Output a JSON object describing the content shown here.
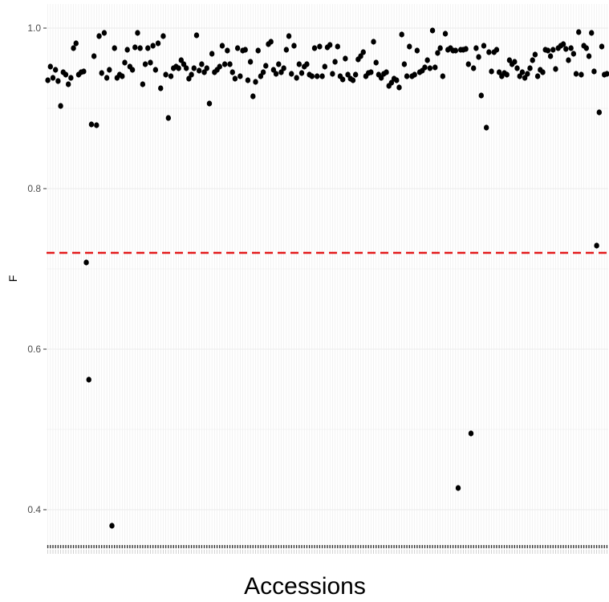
{
  "chart_data": {
    "type": "scatter",
    "title": "",
    "xlabel": "Accessions",
    "ylabel": "F",
    "ylim": [
      0.345,
      1.03
    ],
    "yticks": [
      0.4,
      0.6,
      0.8,
      1.0
    ],
    "ytick_labels": [
      "0.4",
      "0.6",
      "0.8",
      "1.0"
    ],
    "grid": true,
    "legend": "none",
    "threshold": {
      "y": 0.72,
      "style": "dashed",
      "color": "#e31a1c"
    },
    "colors": {
      "point": "#000000",
      "panel": "#ffffff",
      "grid": "#ebebeb"
    },
    "series": [
      {
        "values": [
          0.935,
          0.952,
          0.938,
          0.948,
          0.934,
          0.903,
          0.945,
          0.942,
          0.93,
          0.938,
          0.975,
          0.981,
          0.942,
          0.945,
          0.946,
          0.708,
          0.562,
          0.88,
          0.965,
          0.879,
          0.99,
          0.944,
          0.994,
          0.938,
          0.948,
          0.38,
          0.975,
          0.938,
          0.942,
          0.94,
          0.957,
          0.973,
          0.952,
          0.948,
          0.976,
          0.994,
          0.975,
          0.93,
          0.955,
          0.975,
          0.957,
          0.978,
          0.948,
          0.981,
          0.925,
          0.99,
          0.942,
          0.888,
          0.94,
          0.95,
          0.952,
          0.95,
          0.96,
          0.955,
          0.95,
          0.937,
          0.942,
          0.95,
          0.991,
          0.947,
          0.955,
          0.945,
          0.95,
          0.906,
          0.968,
          0.945,
          0.948,
          0.952,
          0.978,
          0.955,
          0.972,
          0.955,
          0.945,
          0.937,
          0.975,
          0.94,
          0.972,
          0.973,
          0.935,
          0.958,
          0.915,
          0.933,
          0.972,
          0.94,
          0.945,
          0.953,
          0.98,
          0.983,
          0.948,
          0.943,
          0.955,
          0.945,
          0.95,
          0.973,
          0.99,
          0.943,
          0.978,
          0.938,
          0.955,
          0.944,
          0.952,
          0.955,
          0.942,
          0.94,
          0.975,
          0.94,
          0.977,
          0.94,
          0.952,
          0.976,
          0.979,
          0.943,
          0.958,
          0.977,
          0.94,
          0.936,
          0.962,
          0.942,
          0.937,
          0.935,
          0.942,
          0.961,
          0.965,
          0.97,
          0.94,
          0.944,
          0.945,
          0.983,
          0.957,
          0.942,
          0.938,
          0.943,
          0.945,
          0.928,
          0.932,
          0.937,
          0.935,
          0.926,
          0.992,
          0.955,
          0.94,
          0.977,
          0.94,
          0.942,
          0.972,
          0.945,
          0.947,
          0.951,
          0.96,
          0.95,
          0.997,
          0.951,
          0.969,
          0.975,
          0.94,
          0.993,
          0.973,
          0.975,
          0.972,
          0.972,
          0.427,
          0.973,
          0.973,
          0.974,
          0.955,
          0.495,
          0.95,
          0.975,
          0.964,
          0.916,
          0.978,
          0.876,
          0.97,
          0.946,
          0.97,
          0.973,
          0.945,
          0.94,
          0.944,
          0.942,
          0.96,
          0.955,
          0.958,
          0.95,
          0.94,
          0.945,
          0.938,
          0.943,
          0.95,
          0.96,
          0.967,
          0.94,
          0.948,
          0.945,
          0.973,
          0.972,
          0.965,
          0.973,
          0.949,
          0.975,
          0.978,
          0.98,
          0.974,
          0.96,
          0.975,
          0.968,
          0.943,
          0.995,
          0.942,
          0.978,
          0.975,
          0.965,
          0.994,
          0.946,
          0.729,
          0.895,
          0.977,
          0.942,
          0.943
        ]
      }
    ]
  }
}
